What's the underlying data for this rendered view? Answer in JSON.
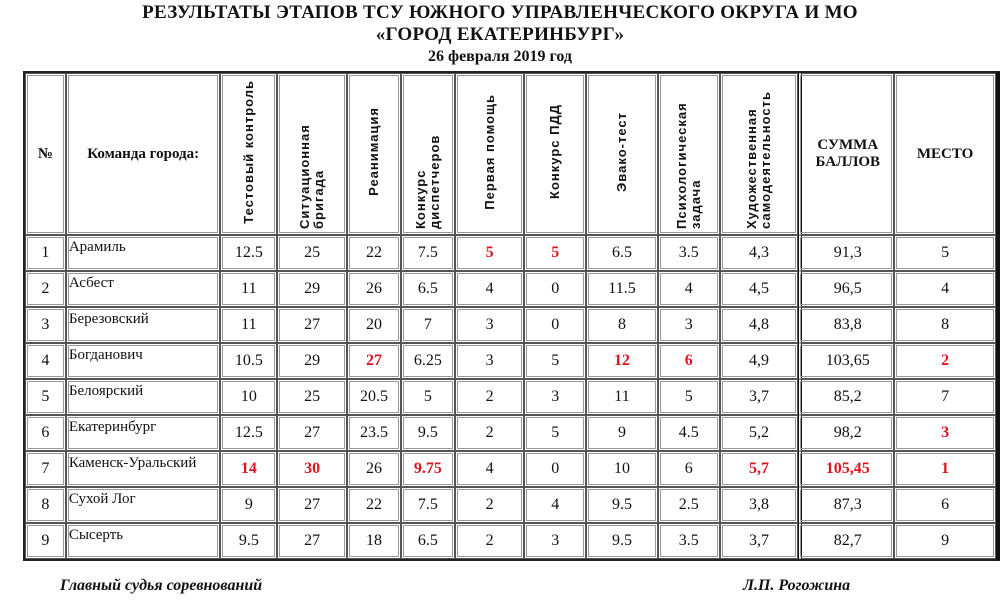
{
  "title_line1": "РЕЗУЛЬТАТЫ ЭТАПОВ ТСУ ЮЖНОГО УПРАВЛЕНЧЕСКОГО ОКРУГА И МО",
  "title_line2": "«ГОРОД ЕКАТЕРИНБУРГ»",
  "date": "26 февраля 2019 год",
  "highlight_color": "#e0141e",
  "columns": [
    "№",
    "Команда города:",
    "Тестовый контроль",
    "Ситуационная бригада",
    "Реанимация",
    "Конкурс диспетчеров",
    "Первая помощь",
    "Конкурс ПДД",
    "Эвако-тест",
    "Психологическая задача",
    "Художественная самодеятельность",
    "СУММА БАЛЛОВ",
    "МЕСТО"
  ],
  "rows": [
    {
      "cells": [
        "1",
        "Арамиль",
        "12.5",
        "25",
        "22",
        "7.5",
        "5",
        "5",
        "6.5",
        "3.5",
        "4,3",
        "91,3",
        "5"
      ],
      "highlighted": [
        6,
        7
      ]
    },
    {
      "cells": [
        "2",
        "Асбест",
        "11",
        "29",
        "26",
        "6.5",
        "4",
        "0",
        "11.5",
        "4",
        "4,5",
        "96,5",
        "4"
      ],
      "highlighted": []
    },
    {
      "cells": [
        "3",
        "Березовский",
        "11",
        "27",
        "20",
        "7",
        "3",
        "0",
        "8",
        "3",
        "4,8",
        "83,8",
        "8"
      ],
      "highlighted": []
    },
    {
      "cells": [
        "4",
        "Богданович",
        "10.5",
        "29",
        "27",
        "6.25",
        "3",
        "5",
        "12",
        "6",
        "4,9",
        "103,65",
        "2"
      ],
      "highlighted": [
        4,
        8,
        9,
        12
      ]
    },
    {
      "cells": [
        "5",
        "Белоярский",
        "10",
        "25",
        "20.5",
        "5",
        "2",
        "3",
        "11",
        "5",
        "3,7",
        "85,2",
        "7"
      ],
      "highlighted": []
    },
    {
      "cells": [
        "6",
        "Екатеринбург",
        "12.5",
        "27",
        "23.5",
        "9.5",
        "2",
        "5",
        "9",
        "4.5",
        "5,2",
        "98,2",
        "3"
      ],
      "highlighted": [
        12
      ]
    },
    {
      "cells": [
        "7",
        "Каменск-Уральский",
        "14",
        "30",
        "26",
        "9.75",
        "4",
        "0",
        "10",
        "6",
        "5,7",
        "105,45",
        "1"
      ],
      "highlighted": [
        2,
        3,
        5,
        10,
        11,
        12
      ]
    },
    {
      "cells": [
        "8",
        "Сухой Лог",
        "9",
        "27",
        "22",
        "7.5",
        "2",
        "4",
        "9.5",
        "2.5",
        "3,8",
        "87,3",
        "6"
      ],
      "highlighted": []
    },
    {
      "cells": [
        "9",
        "Сысерть",
        "9.5",
        "27",
        "18",
        "6.5",
        "2",
        "3",
        "9.5",
        "3.5",
        "3,7",
        "82,7",
        "9"
      ],
      "highlighted": []
    }
  ],
  "footer_left": "Главный судья соревнований",
  "footer_right": "Л.П. Рогожина"
}
